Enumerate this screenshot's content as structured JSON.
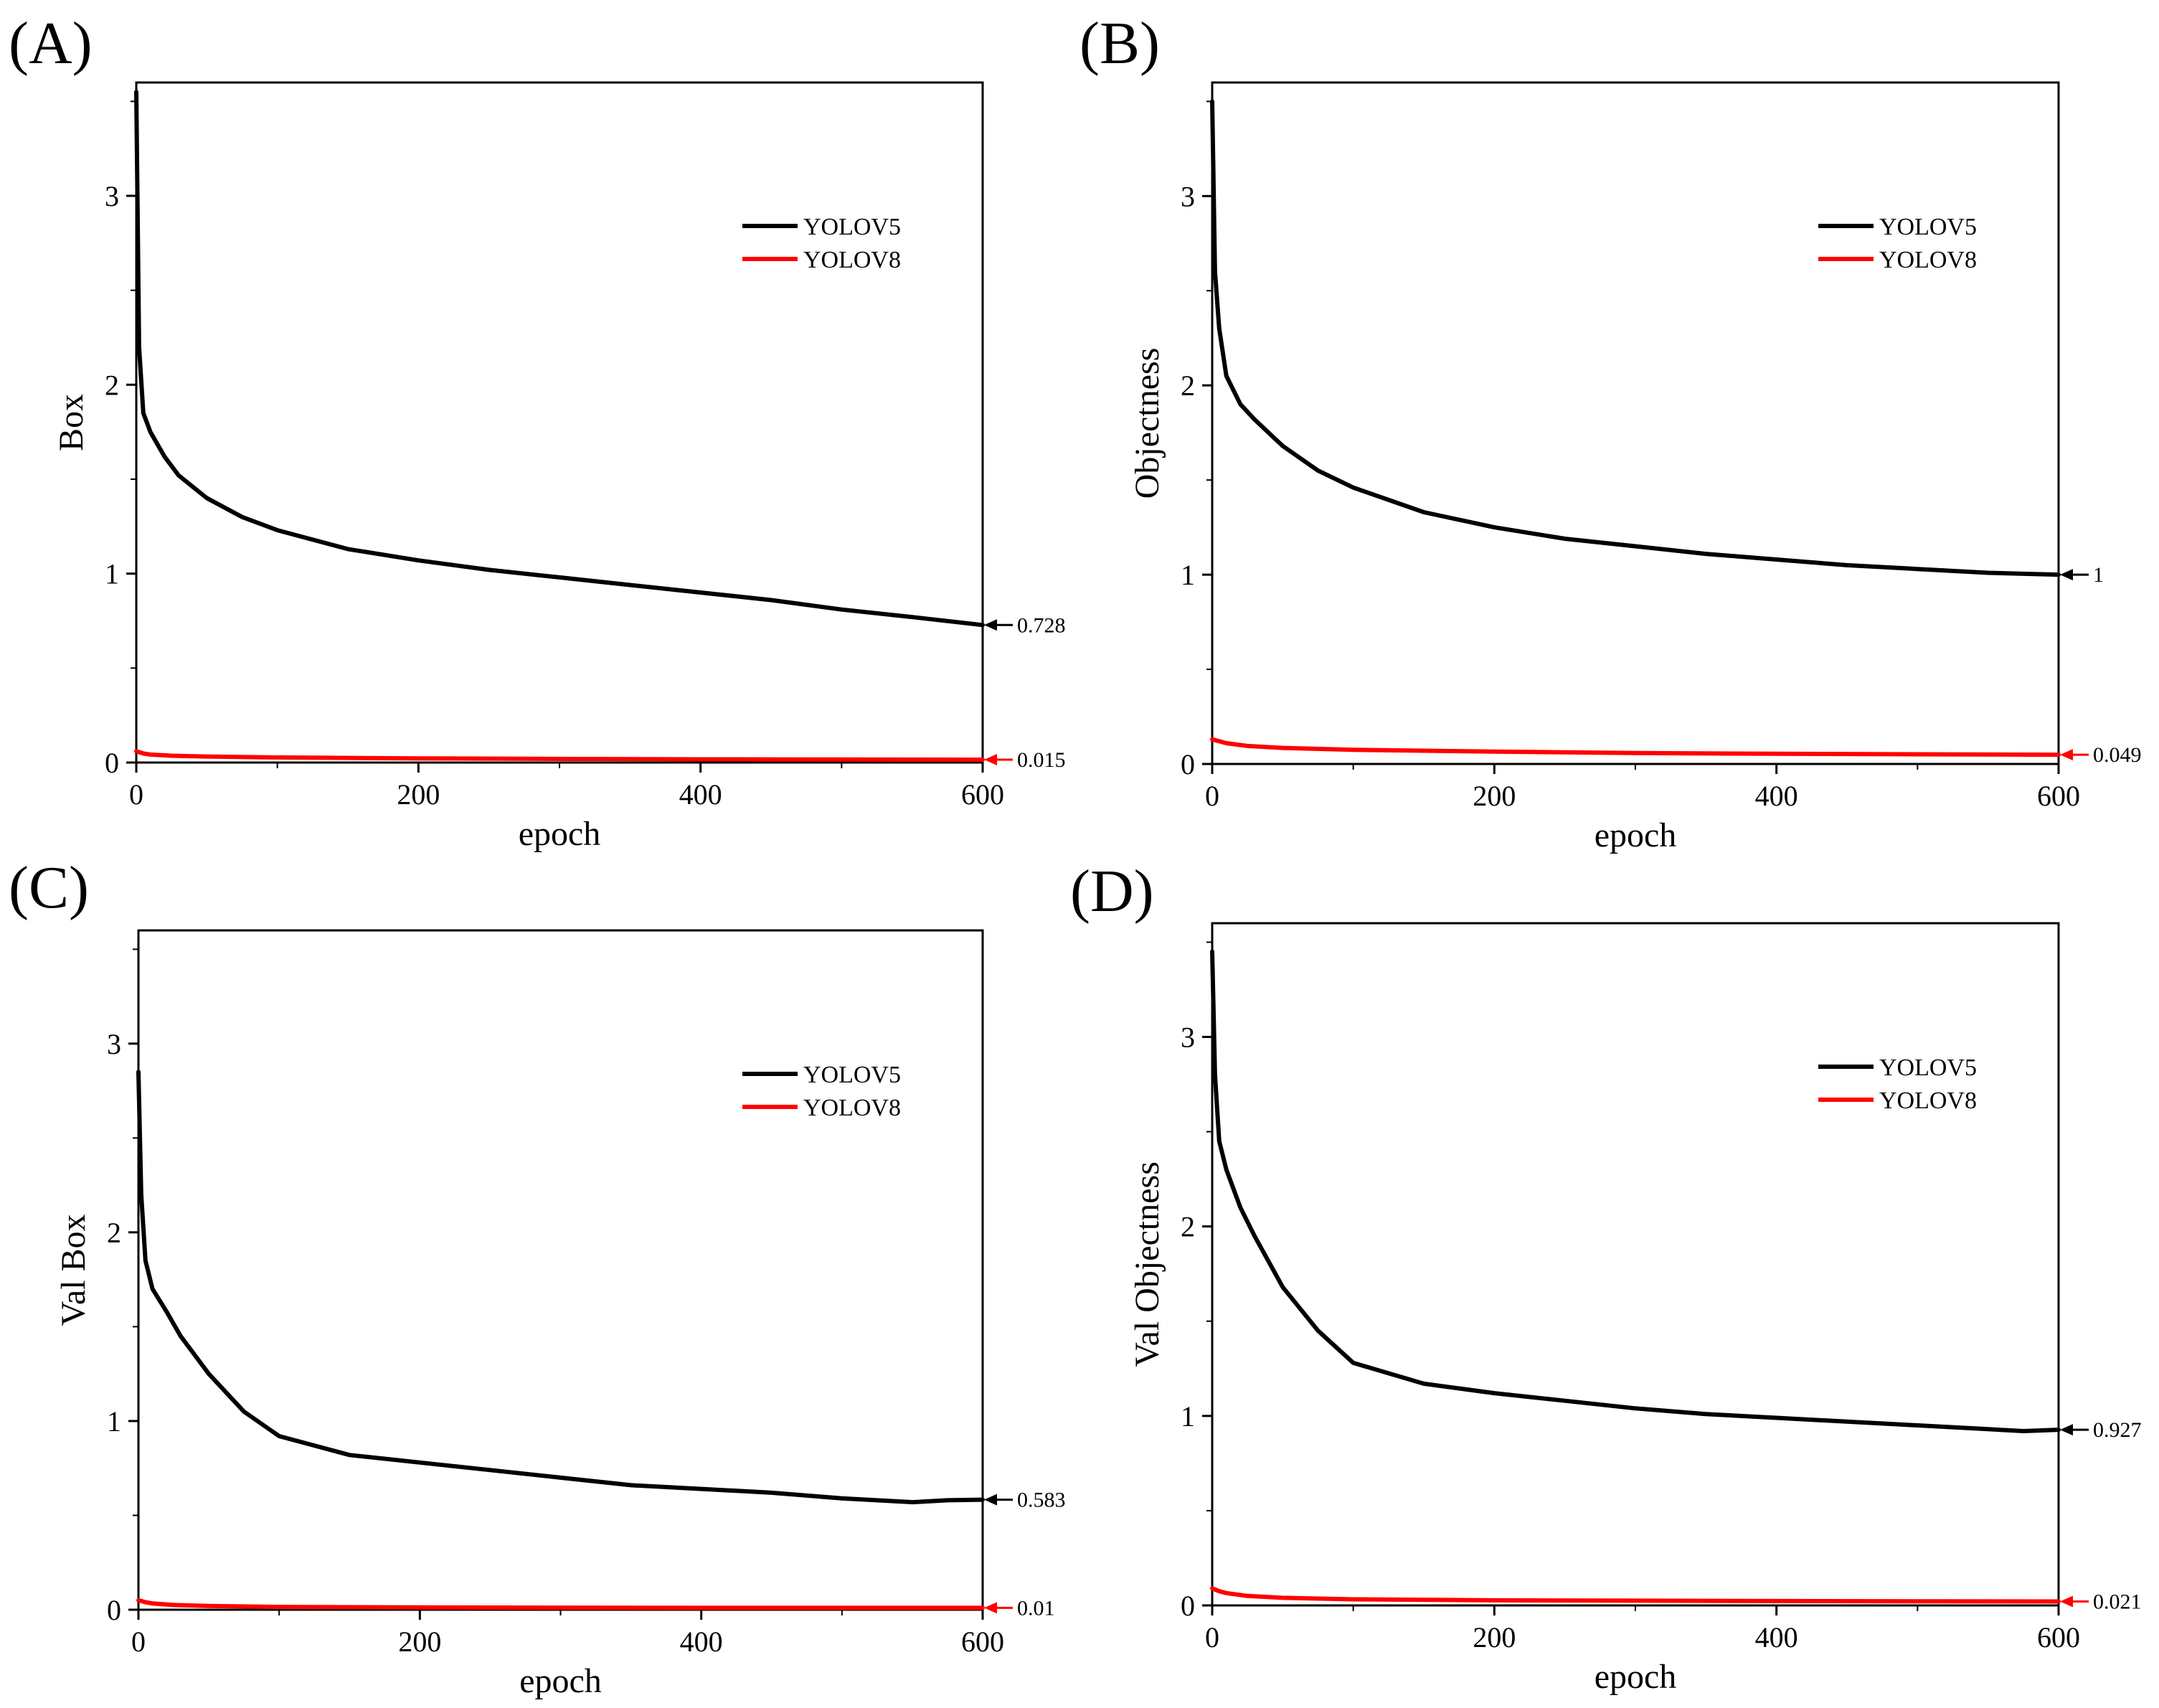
{
  "figure": {
    "background": "#ffffff"
  },
  "colors": {
    "yolov5": "#000000",
    "yolov8": "#ff0000",
    "axis": "#000000"
  },
  "chart_data": [
    {
      "panel_label": "(A)",
      "type": "line",
      "title": "",
      "xlabel": "epoch",
      "ylabel": "Box",
      "xlim": [
        0,
        600
      ],
      "ylim": [
        0,
        3.6
      ],
      "xticks": [
        0,
        200,
        400,
        600
      ],
      "yticks": [
        0,
        1,
        2,
        3
      ],
      "xtick_labels": [
        "0",
        "200",
        "400",
        "600"
      ],
      "ytick_labels": [
        "0",
        "1",
        "2",
        "3"
      ],
      "legend": [
        "YOLOV5",
        "YOLOV8"
      ],
      "legend_position": "top-right",
      "grid": false,
      "series": [
        {
          "name": "YOLOV5",
          "color": "#000000",
          "x": [
            0,
            2,
            5,
            10,
            20,
            30,
            50,
            75,
            100,
            150,
            200,
            250,
            300,
            350,
            400,
            450,
            500,
            550,
            600
          ],
          "y": [
            3.55,
            2.2,
            1.85,
            1.75,
            1.62,
            1.52,
            1.4,
            1.3,
            1.23,
            1.13,
            1.07,
            1.02,
            0.98,
            0.94,
            0.9,
            0.86,
            0.81,
            0.77,
            0.728
          ]
        },
        {
          "name": "YOLOV8",
          "color": "#ff0000",
          "x": [
            0,
            5,
            10,
            25,
            50,
            100,
            200,
            300,
            400,
            500,
            600
          ],
          "y": [
            0.06,
            0.048,
            0.042,
            0.036,
            0.032,
            0.027,
            0.022,
            0.019,
            0.017,
            0.016,
            0.015
          ]
        }
      ],
      "annotations": [
        {
          "series": "YOLOV5",
          "text": "0.728",
          "value": 0.728
        },
        {
          "series": "YOLOV8",
          "text": "0.015",
          "value": 0.015
        }
      ]
    },
    {
      "panel_label": "(B)",
      "type": "line",
      "title": "",
      "xlabel": "epoch",
      "ylabel": "Objectness",
      "xlim": [
        0,
        600
      ],
      "ylim": [
        0,
        3.6
      ],
      "xticks": [
        0,
        200,
        400,
        600
      ],
      "yticks": [
        0,
        1,
        2,
        3
      ],
      "xtick_labels": [
        "0",
        "200",
        "400",
        "600"
      ],
      "ytick_labels": [
        "0",
        "1",
        "2",
        "3"
      ],
      "legend": [
        "YOLOV5",
        "YOLOV8"
      ],
      "legend_position": "top-right",
      "grid": false,
      "series": [
        {
          "name": "YOLOV5",
          "color": "#000000",
          "x": [
            0,
            2,
            5,
            10,
            20,
            30,
            50,
            75,
            100,
            150,
            200,
            250,
            300,
            350,
            400,
            450,
            500,
            550,
            600
          ],
          "y": [
            3.5,
            2.6,
            2.3,
            2.05,
            1.9,
            1.82,
            1.68,
            1.55,
            1.46,
            1.33,
            1.25,
            1.19,
            1.15,
            1.11,
            1.08,
            1.05,
            1.03,
            1.01,
            1.0
          ]
        },
        {
          "name": "YOLOV8",
          "color": "#ff0000",
          "x": [
            0,
            5,
            10,
            25,
            50,
            100,
            200,
            300,
            400,
            500,
            600
          ],
          "y": [
            0.13,
            0.12,
            0.11,
            0.095,
            0.085,
            0.075,
            0.065,
            0.058,
            0.054,
            0.051,
            0.049
          ]
        }
      ],
      "annotations": [
        {
          "series": "YOLOV5",
          "text": "1",
          "value": 1.0
        },
        {
          "series": "YOLOV8",
          "text": "0.049",
          "value": 0.049
        }
      ]
    },
    {
      "panel_label": "(C)",
      "type": "line",
      "title": "",
      "xlabel": "epoch",
      "ylabel": "Val Box",
      "xlim": [
        0,
        600
      ],
      "ylim": [
        0,
        3.6
      ],
      "xticks": [
        0,
        200,
        400,
        600
      ],
      "yticks": [
        0,
        1,
        2,
        3
      ],
      "xtick_labels": [
        "0",
        "200",
        "400",
        "600"
      ],
      "ytick_labels": [
        "0",
        "1",
        "2",
        "3"
      ],
      "legend": [
        "YOLOV5",
        "YOLOV8"
      ],
      "legend_position": "top-right",
      "grid": false,
      "series": [
        {
          "name": "YOLOV5",
          "color": "#000000",
          "x": [
            0,
            2,
            5,
            10,
            20,
            30,
            50,
            75,
            100,
            150,
            200,
            250,
            300,
            350,
            400,
            450,
            500,
            550,
            575,
            600
          ],
          "y": [
            2.85,
            2.2,
            1.85,
            1.7,
            1.58,
            1.45,
            1.25,
            1.05,
            0.92,
            0.82,
            0.78,
            0.74,
            0.7,
            0.66,
            0.64,
            0.62,
            0.59,
            0.57,
            0.58,
            0.583
          ]
        },
        {
          "name": "YOLOV8",
          "color": "#ff0000",
          "x": [
            0,
            5,
            10,
            25,
            50,
            100,
            200,
            300,
            400,
            500,
            600
          ],
          "y": [
            0.05,
            0.04,
            0.033,
            0.025,
            0.02,
            0.015,
            0.012,
            0.011,
            0.01,
            0.01,
            0.01
          ]
        }
      ],
      "annotations": [
        {
          "series": "YOLOV5",
          "text": "0.583",
          "value": 0.583
        },
        {
          "series": "YOLOV8",
          "text": "0.01",
          "value": 0.01
        }
      ]
    },
    {
      "panel_label": "(D)",
      "type": "line",
      "title": "",
      "xlabel": "epoch",
      "ylabel": "Val Objectness",
      "xlim": [
        0,
        600
      ],
      "ylim": [
        0,
        3.6
      ],
      "xticks": [
        0,
        200,
        400,
        600
      ],
      "yticks": [
        0,
        1,
        2,
        3
      ],
      "xtick_labels": [
        "0",
        "200",
        "400",
        "600"
      ],
      "ytick_labels": [
        "0",
        "1",
        "2",
        "3"
      ],
      "legend": [
        "YOLOV5",
        "YOLOV8"
      ],
      "legend_position": "top-right",
      "grid": false,
      "series": [
        {
          "name": "YOLOV5",
          "color": "#000000",
          "x": [
            0,
            2,
            5,
            10,
            20,
            30,
            50,
            75,
            100,
            150,
            200,
            250,
            300,
            350,
            400,
            450,
            500,
            550,
            575,
            600
          ],
          "y": [
            3.45,
            2.8,
            2.45,
            2.3,
            2.1,
            1.95,
            1.68,
            1.45,
            1.28,
            1.17,
            1.12,
            1.08,
            1.04,
            1.01,
            0.99,
            0.97,
            0.95,
            0.93,
            0.92,
            0.927
          ]
        },
        {
          "name": "YOLOV8",
          "color": "#ff0000",
          "x": [
            0,
            5,
            10,
            25,
            50,
            100,
            200,
            300,
            400,
            500,
            600
          ],
          "y": [
            0.09,
            0.075,
            0.065,
            0.05,
            0.04,
            0.032,
            0.027,
            0.025,
            0.023,
            0.022,
            0.021
          ]
        }
      ],
      "annotations": [
        {
          "series": "YOLOV5",
          "text": "0.927",
          "value": 0.927
        },
        {
          "series": "YOLOV8",
          "text": "0.021",
          "value": 0.021
        }
      ]
    }
  ]
}
